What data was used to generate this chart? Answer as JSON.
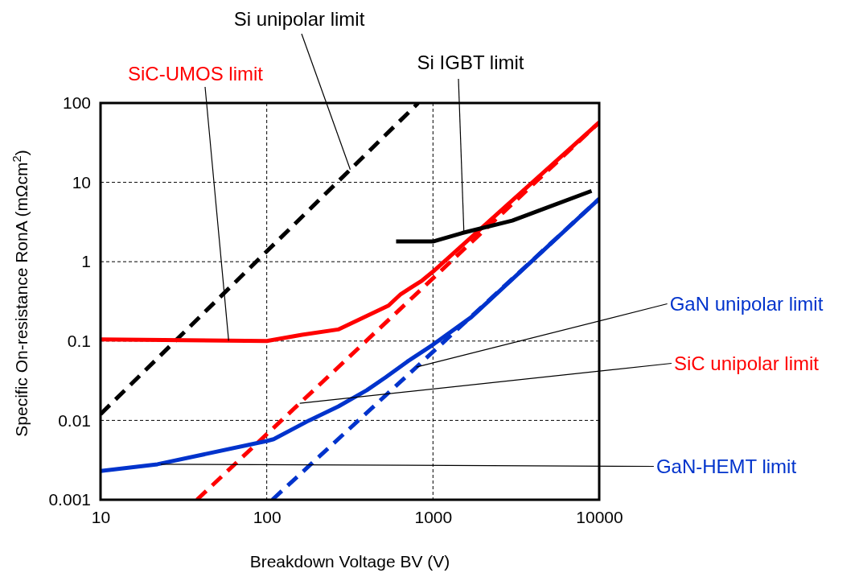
{
  "chart_data": {
    "type": "line",
    "xlabel": "Breakdown Voltage BV (V)",
    "ylabel": "Specific On-resistance RonA (mΩcm$^{2}$)",
    "log": "xy",
    "xlim": [
      10,
      10000
    ],
    "ylim": [
      0.001,
      100
    ],
    "xticks": [
      10,
      100,
      1000,
      10000
    ],
    "yticks": [
      0.001,
      0.01,
      0.1,
      1,
      10,
      100
    ],
    "grid": true,
    "marker": "none",
    "annotations": [
      {
        "text": "GaN unipolar limit",
        "x": 795,
        "y": 0.047
      },
      {
        "text": "SiC unipolar limit",
        "x": 158,
        "y": 0.0164
      },
      {
        "text": "GaN-HEMT limit",
        "x": 23,
        "y": 0.0028
      }
    ],
    "series": [
      {
        "name": "Si unipolar limit",
        "color": "#000000",
        "line_style": "dashed",
        "x": [
          10,
          815
        ],
        "values": [
          0.012,
          100
        ]
      },
      {
        "name": "SiC-UMOS limit",
        "color": "#ff0000",
        "line_style": "solid",
        "x": [
          10,
          100,
          163,
          269,
          540,
          640,
          861,
          1000,
          10000
        ],
        "values": [
          0.105,
          0.1,
          0.12,
          0.14,
          0.28,
          0.39,
          0.58,
          0.75,
          57
        ]
      },
      {
        "color": "#ff0000",
        "line_style": "dashed",
        "x": [
          38,
          10000
        ],
        "values": [
          0.001,
          57
        ]
      },
      {
        "color": "#0033cc",
        "line_style": "dashed",
        "x": [
          108,
          10000
        ],
        "values": [
          0.001,
          6.2
        ]
      },
      {
        "color": "#0033cc",
        "line_style": "solid",
        "x": [
          10,
          22,
          100,
          110,
          180,
          270,
          400,
          520,
          700,
          1000,
          1700,
          10000
        ],
        "values": [
          0.0023,
          0.0028,
          0.0055,
          0.0058,
          0.01,
          0.015,
          0.024,
          0.035,
          0.055,
          0.09,
          0.2,
          6.2
        ]
      },
      {
        "name": "Si IGBT limit",
        "color": "#000000",
        "line_style": "solid",
        "x": [
          600,
          1000,
          1500,
          3000,
          9000
        ],
        "values": [
          1.8,
          1.8,
          2.3,
          3.3,
          7.8
        ]
      }
    ]
  }
}
